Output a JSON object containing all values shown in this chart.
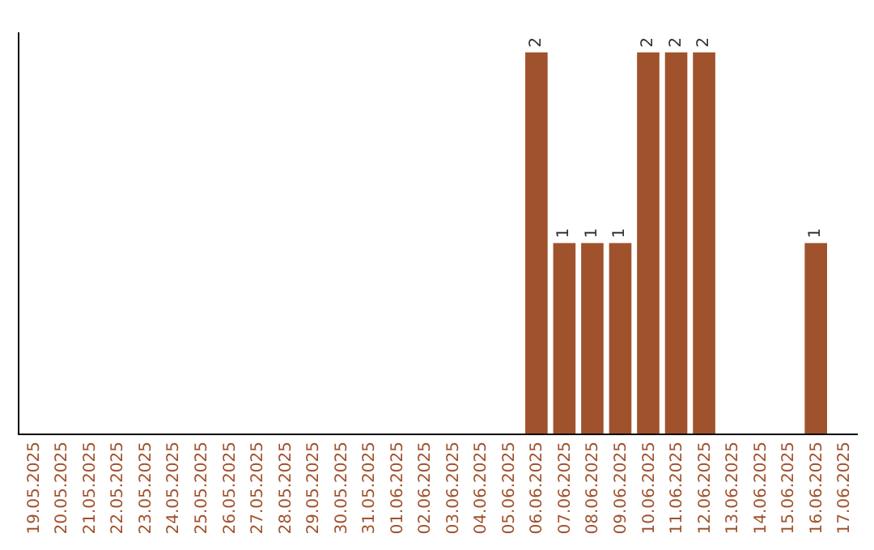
{
  "chart_data": {
    "type": "bar",
    "categories": [
      "19.05.2025",
      "20.05.2025",
      "21.05.2025",
      "22.05.2025",
      "23.05.2025",
      "24.05.2025",
      "25.05.2025",
      "26.05.2025",
      "27.05.2025",
      "28.05.2025",
      "29.05.2025",
      "30.05.2025",
      "31.05.2025",
      "01.06.2025",
      "02.06.2025",
      "03.06.2025",
      "04.06.2025",
      "05.06.2025",
      "06.06.2025",
      "07.06.2025",
      "08.06.2025",
      "09.06.2025",
      "10.06.2025",
      "11.06.2025",
      "12.06.2025",
      "13.06.2025",
      "14.06.2025",
      "15.06.2025",
      "16.06.2025",
      "17.06.2025"
    ],
    "values": [
      null,
      null,
      null,
      null,
      null,
      null,
      null,
      null,
      null,
      null,
      null,
      null,
      null,
      null,
      null,
      null,
      null,
      null,
      2,
      1,
      1,
      1,
      2,
      2,
      2,
      null,
      null,
      null,
      1,
      null
    ],
    "color": "#a0522d",
    "data_labels": true,
    "tick_labels": "x"
  }
}
